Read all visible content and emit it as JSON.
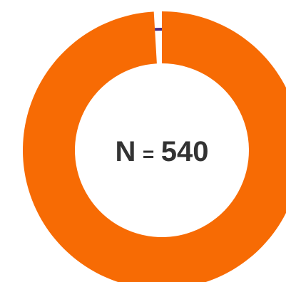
{
  "chart_data": {
    "type": "pie",
    "variant": "donut",
    "slices": [
      {
        "value": 535,
        "color": "#f76b04"
      },
      {
        "value": 5,
        "color": "#4a2a80"
      }
    ],
    "center_text": {
      "n_label": "N",
      "equals": "=",
      "value": "540"
    },
    "legend": "none"
  }
}
